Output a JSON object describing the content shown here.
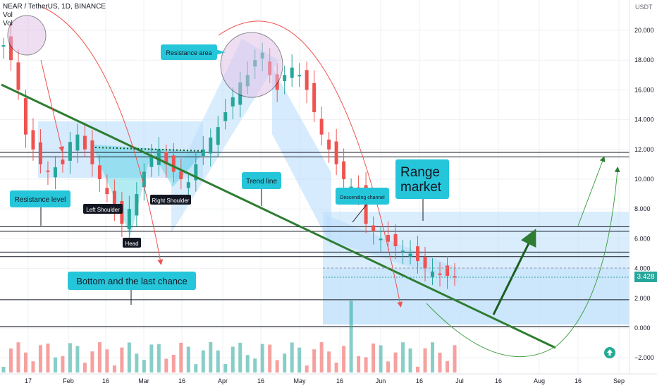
{
  "header": {
    "symbol_line": "NEAR / TetherUS, 1D, BINANCE",
    "vol1": "Vol",
    "vol2": "Vol"
  },
  "currency": "USDT",
  "last_price": "3.428",
  "annotations": {
    "resistance_area": "Resistance area",
    "resistance_level": "Resistance level",
    "left_shoulder": "Left Shoulder",
    "head": "Head",
    "right_shoulder": "Right Shoulder",
    "trend_line": "Trend line",
    "descending_channel": "Descending channel",
    "range_market_1": "Range",
    "range_market_2": "market",
    "bottom": "Bottom and the last chance"
  },
  "colors": {
    "up": "#26a69a",
    "down": "#ef5350",
    "trend": "#2e7d32",
    "box": "#bbdefb",
    "callout": "#26c6da"
  },
  "chart_data": {
    "type": "candlestick",
    "y_ticks": [
      "20.000",
      "18.000",
      "16.000",
      "14.000",
      "12.000",
      "10.000",
      "8.000",
      "6.000",
      "4.000",
      "2.000",
      "0.000",
      "−2.000"
    ],
    "x_ticks": [
      "17",
      "Feb",
      "16",
      "Mar",
      "16",
      "Apr",
      "16",
      "May",
      "16",
      "Jun",
      "16",
      "Jul",
      "16",
      "Aug",
      "16",
      "Sep"
    ],
    "close_series": [
      19,
      18,
      16,
      13,
      12,
      11,
      10.5,
      10.8,
      11,
      12.5,
      13,
      12,
      11,
      10,
      9,
      8,
      7,
      8,
      9,
      10.5,
      11.5,
      12,
      11,
      10.5,
      10,
      9.8,
      11,
      12,
      12.8,
      13.5,
      14.5,
      15.5,
      16.5,
      17,
      18,
      18.5,
      17,
      16,
      17,
      17.5,
      17,
      16,
      14.5,
      13,
      12,
      11,
      10,
      9.5,
      9,
      7,
      6.5,
      6,
      5.8,
      5.5,
      5.2,
      5,
      4.5,
      4,
      3.8,
      3.6,
      3.5,
      3.428
    ],
    "levels": [
      11.8,
      11.5,
      6.8,
      6.5,
      5.1,
      4.8,
      1.9,
      0.1
    ],
    "last": 3.428
  }
}
